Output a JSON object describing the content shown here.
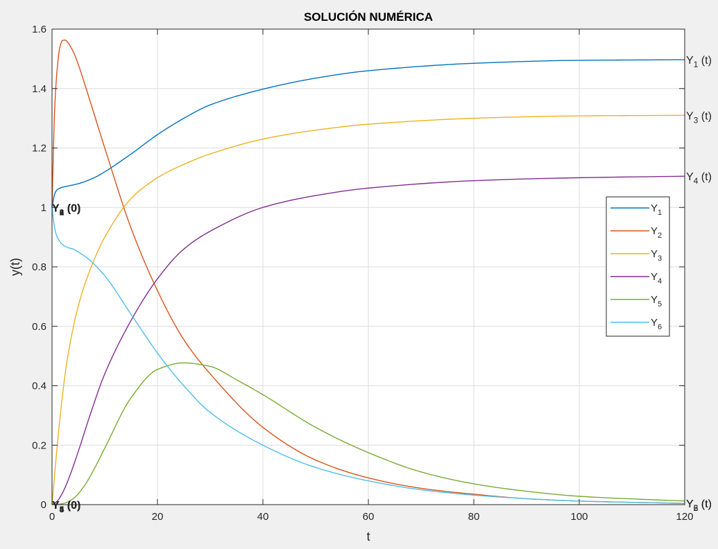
{
  "chart_data": {
    "type": "line",
    "title": "SOLUCIÓN NUMÉRICA",
    "xlabel": "t",
    "ylabel": "y(t)",
    "xlim": [
      0,
      120
    ],
    "ylim": [
      0,
      1.6
    ],
    "xticks": [
      "0",
      "20",
      "40",
      "60",
      "80",
      "100",
      "120"
    ],
    "yticks": [
      "0",
      "0.2",
      "0.4",
      "0.6",
      "0.8",
      "1",
      "1.2",
      "1.4",
      "1.6"
    ],
    "grid": true,
    "legend_position": "right",
    "series": [
      {
        "name": "Y1",
        "color": "#0072BD",
        "x": [
          0,
          0.5,
          1,
          2,
          3,
          5,
          8,
          10,
          15,
          20,
          25,
          30,
          40,
          50,
          60,
          80,
          100,
          120
        ],
        "y": [
          1.0,
          1.045,
          1.06,
          1.068,
          1.072,
          1.08,
          1.1,
          1.12,
          1.18,
          1.245,
          1.3,
          1.345,
          1.398,
          1.435,
          1.46,
          1.485,
          1.495,
          1.497
        ]
      },
      {
        "name": "Y2",
        "color": "#D95319",
        "x": [
          0,
          0.5,
          1,
          1.5,
          2,
          2.5,
          3,
          4,
          5,
          7,
          10,
          15,
          20,
          25,
          30,
          40,
          50,
          60,
          70,
          80,
          90,
          100,
          120
        ],
        "y": [
          1.0,
          1.33,
          1.47,
          1.54,
          1.562,
          1.563,
          1.555,
          1.525,
          1.48,
          1.37,
          1.2,
          0.93,
          0.72,
          0.555,
          0.44,
          0.26,
          0.15,
          0.09,
          0.055,
          0.035,
          0.02,
          0.012,
          0.004
        ]
      },
      {
        "name": "Y3",
        "color": "#EDB120",
        "x": [
          0,
          1,
          2,
          3,
          5,
          7,
          10,
          15,
          20,
          25,
          30,
          40,
          50,
          60,
          80,
          100,
          120
        ],
        "y": [
          0,
          0.2,
          0.37,
          0.5,
          0.67,
          0.78,
          0.9,
          1.03,
          1.1,
          1.145,
          1.18,
          1.23,
          1.26,
          1.28,
          1.3,
          1.308,
          1.31
        ]
      },
      {
        "name": "Y4",
        "color": "#7E2F8E",
        "x": [
          0,
          1,
          2,
          3,
          5,
          7,
          10,
          15,
          20,
          25,
          30,
          40,
          50,
          60,
          80,
          100,
          120
        ],
        "y": [
          0,
          0.012,
          0.04,
          0.08,
          0.18,
          0.29,
          0.44,
          0.62,
          0.76,
          0.86,
          0.92,
          1.0,
          1.04,
          1.065,
          1.09,
          1.1,
          1.105
        ]
      },
      {
        "name": "Y5",
        "color": "#77AC30",
        "x": [
          0,
          2,
          4,
          6,
          8,
          10,
          15,
          20,
          25,
          30,
          35,
          40,
          50,
          60,
          70,
          80,
          90,
          100,
          120
        ],
        "y": [
          0,
          0.003,
          0.02,
          0.06,
          0.12,
          0.19,
          0.36,
          0.455,
          0.477,
          0.465,
          0.42,
          0.37,
          0.26,
          0.175,
          0.11,
          0.07,
          0.045,
          0.028,
          0.012
        ]
      },
      {
        "name": "Y6",
        "color": "#4DBEEE",
        "x": [
          0,
          0.5,
          1,
          2,
          3,
          4,
          5,
          7,
          10,
          15,
          20,
          25,
          30,
          40,
          50,
          60,
          70,
          80,
          90,
          100,
          120
        ],
        "y": [
          1.0,
          0.93,
          0.9,
          0.875,
          0.865,
          0.86,
          0.85,
          0.825,
          0.77,
          0.64,
          0.51,
          0.4,
          0.31,
          0.2,
          0.125,
          0.08,
          0.05,
          0.032,
          0.02,
          0.012,
          0.004
        ]
      }
    ],
    "legend": [
      {
        "base": "Y",
        "sub": "1"
      },
      {
        "base": "Y",
        "sub": "2"
      },
      {
        "base": "Y",
        "sub": "3"
      },
      {
        "base": "Y",
        "sub": "4"
      },
      {
        "base": "Y",
        "sub": "5"
      },
      {
        "base": "Y",
        "sub": "6"
      }
    ],
    "annotations": [
      {
        "x": 120,
        "y": 1.497,
        "base": "Y",
        "sub": "1",
        "suffix": " (t)",
        "side": "end"
      },
      {
        "x": 120,
        "y": 1.31,
        "base": "Y",
        "sub": "3",
        "suffix": " (t)",
        "side": "end"
      },
      {
        "x": 120,
        "y": 1.105,
        "base": "Y",
        "sub": "4",
        "suffix": " (t)",
        "side": "end"
      },
      {
        "x": 120,
        "y": 0.005,
        "base": "Y",
        "sub": "6",
        "suffix": " (t)",
        "side": "end"
      },
      {
        "x": 120,
        "y": 0.005,
        "base": "Y",
        "sub": "2",
        "suffix": " (t)",
        "side": "end"
      },
      {
        "x": 120,
        "y": 0.005,
        "base": "Y",
        "sub": "5",
        "suffix": " (t)",
        "side": "end"
      },
      {
        "x": 0,
        "y": 1.0,
        "base": "Y",
        "sub": "6",
        "suffix": " (0)",
        "side": "start"
      },
      {
        "x": 0,
        "y": 1.0,
        "base": "Y",
        "sub": "2",
        "suffix": " (0)",
        "side": "start"
      },
      {
        "x": 0,
        "y": 1.0,
        "base": "Y",
        "sub": "1",
        "suffix": " (0)",
        "side": "start"
      },
      {
        "x": 0,
        "y": 0,
        "base": "Y",
        "sub": "5",
        "suffix": " (0)",
        "side": "start"
      },
      {
        "x": 0,
        "y": 0,
        "base": "Y",
        "sub": "4",
        "suffix": " (0)",
        "side": "start"
      },
      {
        "x": 0,
        "y": 0,
        "base": "Y",
        "sub": "3",
        "suffix": " (0)",
        "side": "start"
      }
    ]
  }
}
